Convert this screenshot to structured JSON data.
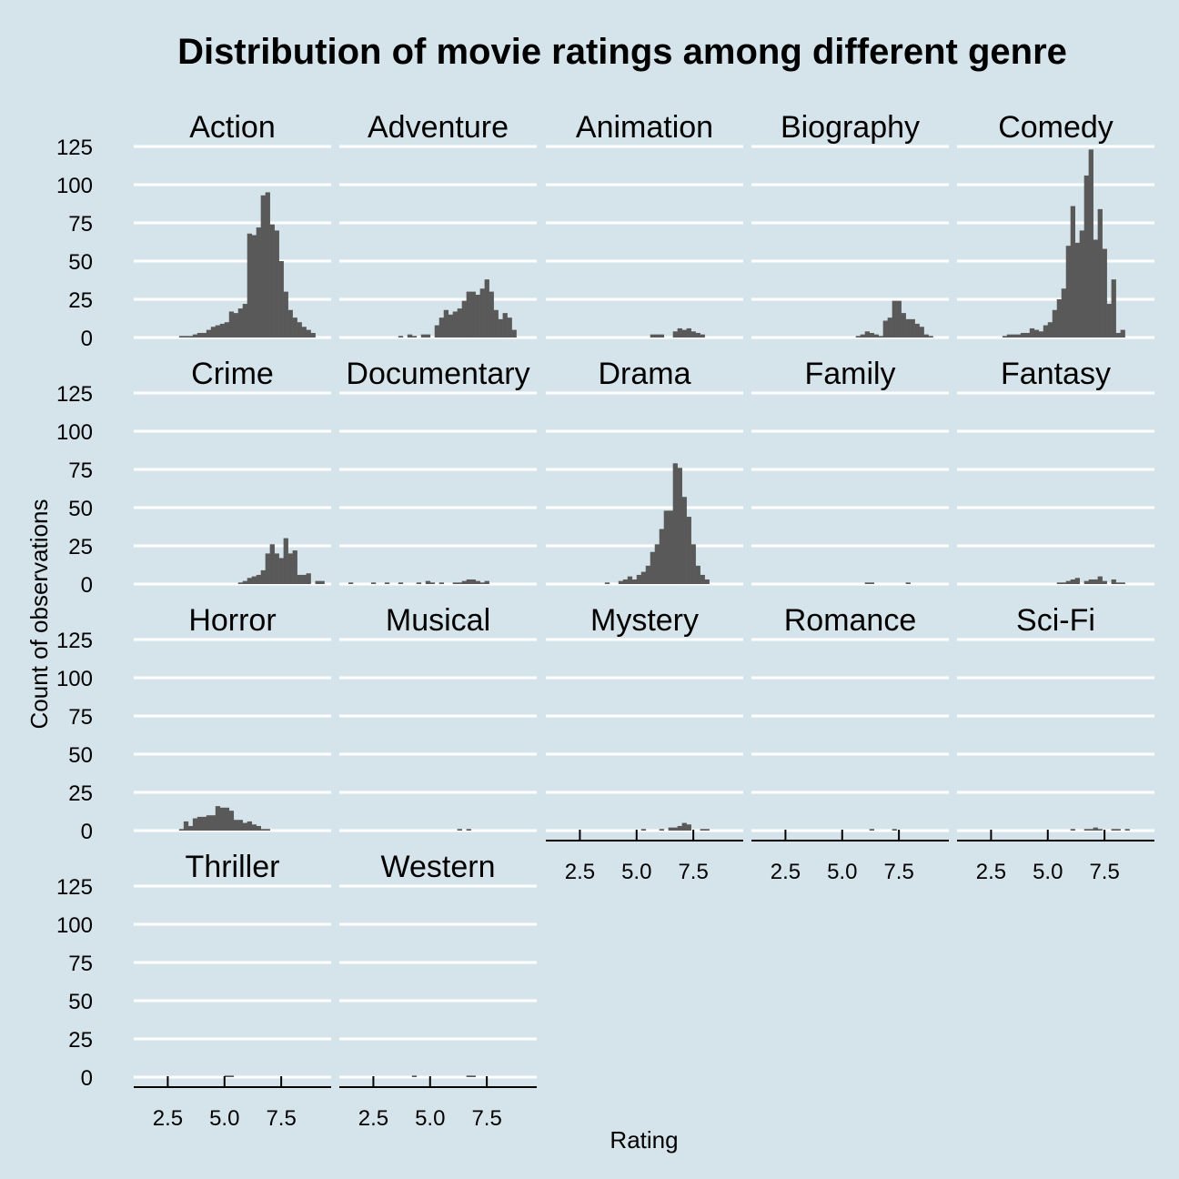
{
  "chart_data": {
    "type": "bar",
    "title": "Distribution of movie ratings among different genre",
    "xlabel": "Rating",
    "ylabel": "Count of observations",
    "ylim": [
      0,
      125
    ],
    "yticks": [
      0,
      25,
      50,
      75,
      100,
      125
    ],
    "xlim": [
      1.0,
      9.7
    ],
    "xticks": [
      2.5,
      5.0,
      7.5
    ],
    "xtick_labels": [
      "2.5",
      "5.0",
      "7.5"
    ],
    "bin_start": 1.0,
    "bin_width": 0.2,
    "grid": "horizontal major lines",
    "facets": [
      {
        "genre": "Action",
        "values": [
          0,
          0,
          0,
          0,
          0,
          0,
          0,
          0,
          0,
          0,
          1,
          1,
          1,
          2,
          3,
          3,
          5,
          7,
          8,
          9,
          10,
          17,
          16,
          19,
          22,
          68,
          67,
          72,
          93,
          95,
          74,
          70,
          50,
          30,
          18,
          13,
          10,
          7,
          5,
          3
        ]
      },
      {
        "genre": "Adventure",
        "values": [
          0,
          0,
          0,
          0,
          0,
          0,
          0,
          0,
          0,
          0,
          0,
          0,
          0,
          1,
          0,
          2,
          1,
          0,
          2,
          2,
          0,
          8,
          13,
          18,
          15,
          17,
          19,
          24,
          30,
          30,
          28,
          32,
          38,
          30,
          18,
          12,
          16,
          13,
          5,
          0
        ]
      },
      {
        "genre": "Animation",
        "values": [
          0,
          0,
          0,
          0,
          0,
          0,
          0,
          0,
          0,
          0,
          0,
          0,
          0,
          0,
          0,
          0,
          0,
          0,
          0,
          0,
          0,
          0,
          0,
          2,
          2,
          2,
          0,
          0,
          4,
          6,
          5,
          6,
          4,
          3,
          2,
          0,
          0,
          0,
          0,
          0
        ]
      },
      {
        "genre": "Biography",
        "values": [
          0,
          0,
          0,
          0,
          0,
          0,
          0,
          0,
          0,
          0,
          0,
          0,
          0,
          0,
          0,
          0,
          0,
          0,
          0,
          0,
          0,
          0,
          0,
          1,
          2,
          4,
          3,
          2,
          1,
          11,
          13,
          24,
          24,
          16,
          12,
          12,
          9,
          7,
          2,
          1
        ]
      },
      {
        "genre": "Comedy",
        "values": [
          0,
          0,
          0,
          0,
          0,
          0,
          0,
          0,
          0,
          0,
          1,
          2,
          2,
          2,
          3,
          3,
          6,
          5,
          4,
          8,
          10,
          18,
          25,
          32,
          60,
          86,
          62,
          70,
          106,
          123,
          64,
          84,
          58,
          22,
          38,
          3,
          5,
          0,
          0,
          0
        ]
      },
      {
        "genre": "Crime",
        "values": [
          0,
          0,
          0,
          0,
          0,
          0,
          0,
          0,
          0,
          0,
          0,
          0,
          0,
          0,
          0,
          0,
          0,
          0,
          0,
          0,
          0,
          0,
          0,
          1,
          2,
          4,
          5,
          6,
          9,
          20,
          26,
          20,
          17,
          30,
          20,
          22,
          6,
          6,
          7,
          0,
          2,
          2
        ]
      },
      {
        "genre": "Documentary",
        "values": [
          0,
          0,
          1,
          0,
          0,
          0,
          0,
          1,
          0,
          0,
          1,
          0,
          0,
          1,
          0,
          0,
          0,
          1,
          0,
          2,
          1,
          0,
          1,
          0,
          0,
          1,
          1,
          2,
          3,
          3,
          2,
          1,
          2,
          0
        ]
      },
      {
        "genre": "Drama",
        "values": [
          0,
          0,
          0,
          0,
          0,
          0,
          0,
          0,
          0,
          0,
          0,
          0,
          0,
          1,
          0,
          0,
          2,
          3,
          5,
          3,
          6,
          8,
          12,
          21,
          26,
          36,
          48,
          48,
          79,
          76,
          57,
          44,
          26,
          12,
          6,
          3
        ]
      },
      {
        "genre": "Family",
        "values": [
          0,
          0,
          0,
          0,
          0,
          0,
          0,
          0,
          0,
          0,
          0,
          0,
          0,
          0,
          0,
          0,
          0,
          0,
          0,
          0,
          0,
          0,
          0,
          0,
          0,
          1,
          1,
          0,
          0,
          0,
          0,
          0,
          0,
          0,
          1,
          0
        ]
      },
      {
        "genre": "Fantasy",
        "values": [
          0,
          0,
          0,
          0,
          0,
          0,
          0,
          0,
          0,
          0,
          0,
          0,
          0,
          0,
          0,
          0,
          0,
          0,
          0,
          0,
          0,
          0,
          1,
          1,
          2,
          3,
          4,
          0,
          2,
          3,
          3,
          5,
          2,
          0,
          3,
          1,
          1,
          0
        ]
      },
      {
        "genre": "Horror",
        "values": [
          0,
          0,
          0,
          0,
          0,
          0,
          0,
          0,
          0,
          0,
          1,
          6,
          3,
          8,
          9,
          9,
          10,
          10,
          16,
          15,
          15,
          13,
          7,
          7,
          5,
          6,
          4,
          3,
          1,
          1
        ]
      },
      {
        "genre": "Musical",
        "values": [
          0,
          0,
          0,
          0,
          0,
          0,
          0,
          0,
          0,
          0,
          0,
          0,
          0,
          0,
          0,
          0,
          0,
          0,
          0,
          0,
          0,
          0,
          0,
          0,
          0,
          0,
          1,
          0,
          1,
          0
        ]
      },
      {
        "genre": "Mystery",
        "values": [
          0,
          0,
          0,
          0,
          0,
          0,
          0,
          0,
          0,
          0,
          0,
          0,
          0,
          0,
          0,
          0,
          0,
          0,
          0,
          0,
          0,
          1,
          0,
          0,
          0,
          1,
          0,
          2,
          2,
          3,
          5,
          4,
          0,
          0,
          1,
          1,
          0
        ]
      },
      {
        "genre": "Romance",
        "values": [
          0,
          0,
          0,
          0,
          0,
          0,
          0,
          0,
          0,
          0,
          0,
          0,
          0,
          0,
          0,
          0,
          0,
          0,
          0,
          0,
          0,
          0,
          0,
          0,
          0,
          0,
          1,
          0,
          0,
          0,
          0,
          1,
          0
        ]
      },
      {
        "genre": "Sci-Fi",
        "values": [
          0,
          0,
          0,
          0,
          0,
          0,
          0,
          0,
          0,
          0,
          0,
          0,
          0,
          0,
          0,
          0,
          0,
          0,
          0,
          0,
          0,
          0,
          0,
          0,
          0,
          1,
          0,
          0,
          1,
          1,
          2,
          1,
          0,
          0,
          1,
          1,
          0,
          1,
          0
        ]
      },
      {
        "genre": "Thriller",
        "values": [
          0,
          0,
          0,
          0,
          0,
          0,
          0,
          0,
          0,
          0,
          0,
          0,
          0,
          0,
          0,
          0,
          0,
          0,
          0,
          0,
          1,
          1,
          0
        ]
      },
      {
        "genre": "Western",
        "values": [
          0,
          0,
          0,
          0,
          0,
          0,
          0,
          0,
          0,
          0,
          0,
          0,
          0,
          0,
          0,
          0,
          1,
          0,
          0,
          0,
          0,
          0,
          0,
          0,
          0,
          0,
          0,
          0,
          1,
          1,
          0
        ]
      }
    ]
  }
}
